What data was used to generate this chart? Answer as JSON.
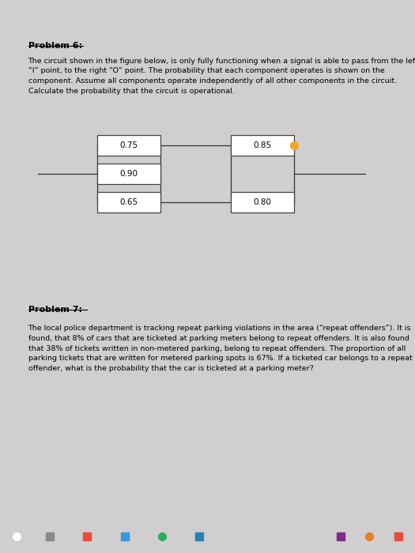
{
  "bg_color": "#d0cece",
  "paper_color": "#f0efee",
  "header_color": "#7b3f7b",
  "problem6_title": "Problem 6:",
  "problem6_body": "The circuit shown in the figure below, is only fully functioning when a signal is able to pass from the left\n“I” point, to the right “O” point. The probability that each component operates is shown on the\ncomponent. Assume all components operate independently of all other components in the circuit.\nCalculate the probability that the circuit is operational.",
  "problem7_title": "Problem 7:",
  "problem7_body": "The local police department is tracking repeat parking violations in the area (“repeat offenders”). It is\nfound, that 8% of cars that are ticketed at parking meters belong to repeat offenders. It is also found\nthat 38% of tickets written in non-metered parking, belong to repeat offenders. The proportion of all\nparking tickets that are written for metered parking spots is 67%. If a ticketed car belongs to a repeat\noffender, what is the probability that the car is ticketed at a parking meter?",
  "box_values": {
    "top_left": "0.75",
    "mid_left": "0.90",
    "bot_left": "0.65",
    "top_right": "0.85",
    "bot_right": "0.80"
  },
  "box_color": "#ffffff",
  "box_edge_color": "#444444",
  "line_color": "#333333",
  "dot_color": "#f5a623",
  "taskbar_color": "#1a1a2e"
}
